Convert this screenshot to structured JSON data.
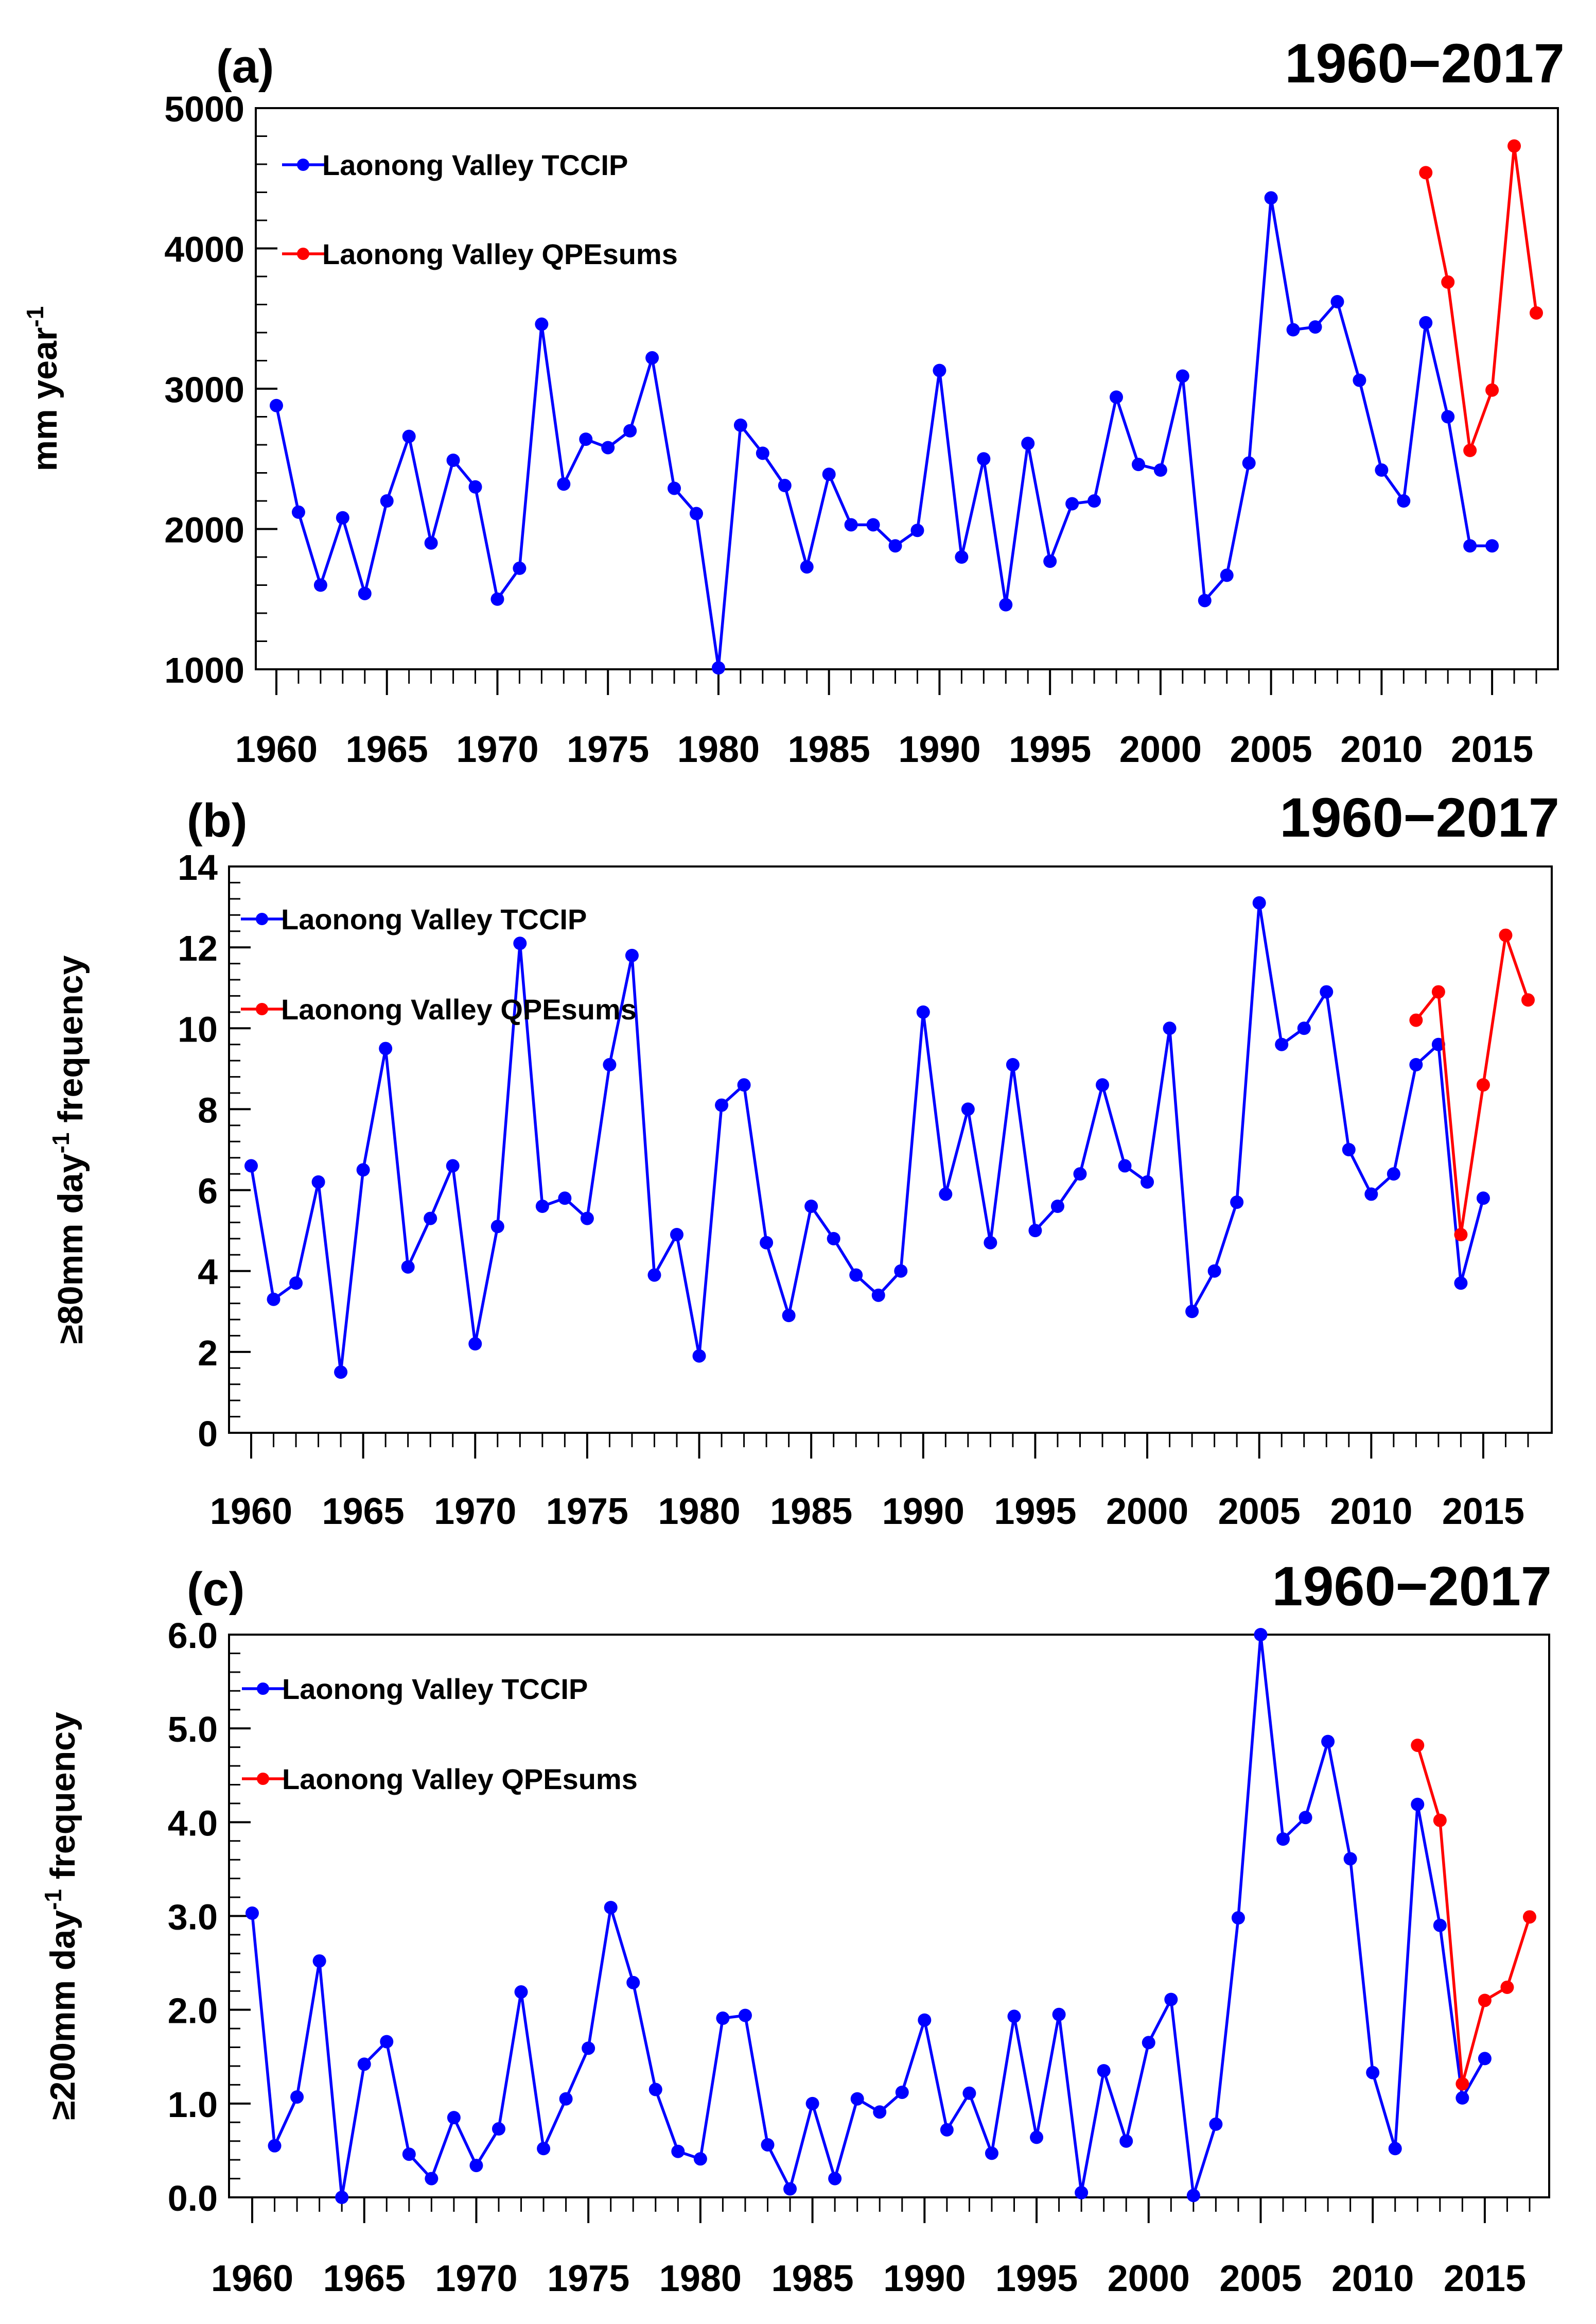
{
  "chart_data": [
    {
      "type": "line",
      "panel": "(a)",
      "title": "1960−2017",
      "ylabel_main": "mm year",
      "ylabel_sup": "-1",
      "ylabel_tail": "",
      "xlabel": "",
      "ylim": [
        1000,
        5000
      ],
      "yticks": [
        1000,
        2000,
        3000,
        4000,
        5000
      ],
      "ytick_labels": [
        "1000",
        "2000",
        "3000",
        "4000",
        "5000"
      ],
      "xlim": [
        1959,
        2018
      ],
      "xticks": [
        1960,
        1965,
        1970,
        1975,
        1980,
        1985,
        1990,
        1995,
        2000,
        2005,
        2010,
        2015
      ],
      "xtick_labels": [
        "1960",
        "1965",
        "1970",
        "1975",
        "1980",
        "1985",
        "1990",
        "1995",
        "2000",
        "2005",
        "2010",
        "2015"
      ],
      "legend_position": "top-left",
      "series": [
        {
          "name": "Laonong Valley TCCIP",
          "color": "#0000ff",
          "x": [
            1960,
            1961,
            1962,
            1963,
            1964,
            1965,
            1966,
            1967,
            1968,
            1969,
            1970,
            1971,
            1972,
            1973,
            1974,
            1975,
            1976,
            1977,
            1978,
            1979,
            1980,
            1981,
            1982,
            1983,
            1984,
            1985,
            1986,
            1987,
            1988,
            1989,
            1990,
            1991,
            1992,
            1993,
            1994,
            1995,
            1996,
            1997,
            1998,
            1999,
            2000,
            2001,
            2002,
            2003,
            2004,
            2005,
            2006,
            2007,
            2008,
            2009,
            2010,
            2011,
            2012,
            2013,
            2014,
            2015
          ],
          "values": [
            2880,
            2120,
            1600,
            2080,
            1540,
            2200,
            2660,
            1900,
            2490,
            2300,
            1500,
            1720,
            3460,
            2320,
            2640,
            2580,
            2700,
            3220,
            2290,
            2110,
            1010,
            2740,
            2540,
            2310,
            1730,
            2390,
            2030,
            2030,
            1880,
            1990,
            3130,
            1800,
            2500,
            1460,
            2610,
            1770,
            2180,
            2200,
            2940,
            2460,
            2420,
            3090,
            1490,
            1670,
            2470,
            4360,
            3420,
            3440,
            3620,
            3060,
            2420,
            2200,
            3470,
            2800,
            1880,
            1880
          ]
        },
        {
          "name": "Laonong Valley QPEsums",
          "color": "#ff0000",
          "x": [
            2012,
            2013,
            2014,
            2015,
            2016,
            2017
          ],
          "values": [
            4540,
            3760,
            2560,
            2990,
            4730,
            3540
          ]
        }
      ]
    },
    {
      "type": "line",
      "panel": "(b)",
      "title": "1960−2017",
      "ylabel_main": "≥80mm day",
      "ylabel_sup": "-1",
      "ylabel_tail": " frequency",
      "xlabel": "",
      "ylim": [
        0,
        14
      ],
      "yticks": [
        0,
        2,
        4,
        6,
        8,
        10,
        12,
        14
      ],
      "ytick_labels": [
        "0",
        "2",
        "4",
        "6",
        "8",
        "10",
        "12",
        "14"
      ],
      "xlim": [
        1959,
        2018
      ],
      "xticks": [
        1960,
        1965,
        1970,
        1975,
        1980,
        1985,
        1990,
        1995,
        2000,
        2005,
        2010,
        2015
      ],
      "xtick_labels": [
        "1960",
        "1965",
        "1970",
        "1975",
        "1980",
        "1985",
        "1990",
        "1995",
        "2000",
        "2005",
        "2010",
        "2015"
      ],
      "legend_position": "top-left",
      "series": [
        {
          "name": "Laonong Valley TCCIP",
          "color": "#0000ff",
          "x": [
            1960,
            1961,
            1962,
            1963,
            1964,
            1965,
            1966,
            1967,
            1968,
            1969,
            1970,
            1971,
            1972,
            1973,
            1974,
            1975,
            1976,
            1977,
            1978,
            1979,
            1980,
            1981,
            1982,
            1983,
            1984,
            1985,
            1986,
            1987,
            1988,
            1989,
            1990,
            1991,
            1992,
            1993,
            1994,
            1995,
            1996,
            1997,
            1998,
            1999,
            2000,
            2001,
            2002,
            2003,
            2004,
            2005,
            2006,
            2007,
            2008,
            2009,
            2010,
            2011,
            2012,
            2013,
            2014,
            2015
          ],
          "values": [
            6.6,
            3.3,
            3.7,
            6.2,
            1.5,
            6.5,
            9.5,
            4.1,
            5.3,
            6.6,
            2.2,
            5.1,
            12.1,
            5.6,
            5.8,
            5.3,
            9.1,
            11.8,
            3.9,
            4.9,
            1.9,
            8.1,
            8.6,
            4.7,
            2.9,
            5.6,
            4.8,
            3.9,
            3.4,
            4.0,
            10.4,
            5.9,
            8.0,
            4.7,
            9.1,
            5.0,
            5.6,
            6.4,
            8.6,
            6.6,
            6.2,
            10.0,
            3.0,
            4.0,
            5.7,
            13.1,
            9.6,
            10.0,
            10.9,
            7.0,
            5.9,
            6.4,
            9.1,
            9.6,
            3.7,
            5.8
          ]
        },
        {
          "name": "Laonong Valley QPEsums",
          "color": "#ff0000",
          "x": [
            2012,
            2013,
            2014,
            2015,
            2016,
            2017
          ],
          "values": [
            10.2,
            10.9,
            4.9,
            8.6,
            12.3,
            10.7
          ]
        }
      ]
    },
    {
      "type": "line",
      "panel": "(c)",
      "title": "1960−2017",
      "ylabel_main": "≥200mm day",
      "ylabel_sup": "-1",
      "ylabel_tail": " frequency",
      "xlabel": "",
      "ylim": [
        0,
        6
      ],
      "yticks": [
        0,
        1,
        2,
        3,
        4,
        5,
        6
      ],
      "ytick_labels": [
        "0.0",
        "1.0",
        "2.0",
        "3.0",
        "4.0",
        "5.0",
        "6.0"
      ],
      "xlim": [
        1959,
        2018
      ],
      "xticks": [
        1960,
        1965,
        1970,
        1975,
        1980,
        1985,
        1990,
        1995,
        2000,
        2005,
        2010,
        2015
      ],
      "xtick_labels": [
        "1960",
        "1965",
        "1970",
        "1975",
        "1980",
        "1985",
        "1990",
        "1995",
        "2000",
        "2005",
        "2010",
        "2015"
      ],
      "legend_position": "top-left",
      "series": [
        {
          "name": "Laonong Valley TCCIP",
          "color": "#0000ff",
          "x": [
            1960,
            1961,
            1962,
            1963,
            1964,
            1965,
            1966,
            1967,
            1968,
            1969,
            1970,
            1971,
            1972,
            1973,
            1974,
            1975,
            1976,
            1977,
            1978,
            1979,
            1980,
            1981,
            1982,
            1983,
            1984,
            1985,
            1986,
            1987,
            1988,
            1989,
            1990,
            1991,
            1992,
            1993,
            1994,
            1995,
            1996,
            1997,
            1998,
            1999,
            2000,
            2001,
            2002,
            2003,
            2004,
            2005,
            2006,
            2007,
            2008,
            2009,
            2010,
            2011,
            2012,
            2013,
            2014,
            2015
          ],
          "values": [
            3.03,
            0.55,
            1.07,
            2.52,
            0.0,
            1.42,
            1.66,
            0.46,
            0.2,
            0.85,
            0.34,
            0.73,
            2.19,
            0.52,
            1.05,
            1.59,
            3.09,
            2.29,
            1.15,
            0.49,
            0.41,
            1.91,
            1.94,
            0.56,
            0.09,
            1.0,
            0.2,
            1.05,
            0.91,
            1.12,
            1.89,
            0.72,
            1.11,
            0.47,
            1.93,
            0.64,
            1.95,
            0.05,
            1.35,
            0.6,
            1.65,
            2.11,
            0.02,
            0.78,
            2.98,
            6.0,
            3.82,
            4.05,
            4.86,
            3.61,
            1.33,
            0.52,
            4.19,
            2.9,
            1.06,
            1.48
          ]
        },
        {
          "name": "Laonong Valley QPEsums",
          "color": "#ff0000",
          "x": [
            2012,
            2013,
            2014,
            2015,
            2016,
            2017
          ],
          "values": [
            4.82,
            4.02,
            1.21,
            2.1,
            2.24,
            2.99
          ]
        }
      ]
    }
  ]
}
